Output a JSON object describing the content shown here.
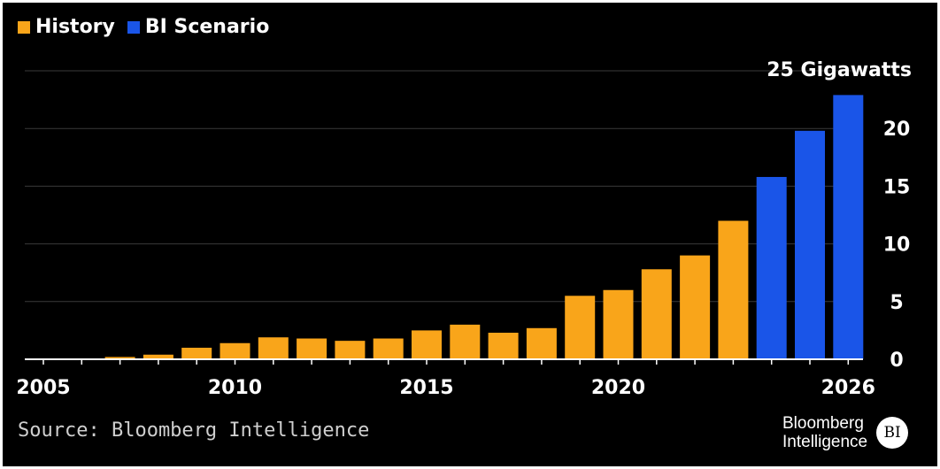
{
  "legend": [
    {
      "label": "History",
      "color": "#f9a51a"
    },
    {
      "label": "BI Scenario",
      "color": "#1a55e8"
    }
  ],
  "source": "Source: Bloomberg Intelligence",
  "logo": {
    "line1": "Bloomberg",
    "line2": "Intelligence",
    "badge": "BI"
  },
  "chart_data": {
    "type": "bar",
    "unit_label": "25 Gigawatts",
    "x": [
      2005,
      2006,
      2007,
      2008,
      2009,
      2010,
      2011,
      2012,
      2013,
      2014,
      2015,
      2016,
      2017,
      2018,
      2019,
      2020,
      2021,
      2022,
      2023,
      2024,
      2025,
      2026
    ],
    "series": [
      {
        "name": "History",
        "color": "#f9a51a",
        "x": [
          2005,
          2006,
          2007,
          2008,
          2009,
          2010,
          2011,
          2012,
          2013,
          2014,
          2015,
          2016,
          2017,
          2018,
          2019,
          2020,
          2021,
          2022,
          2023
        ],
        "values": [
          0,
          0.05,
          0.2,
          0.4,
          1.0,
          1.4,
          1.9,
          1.8,
          1.6,
          1.8,
          2.5,
          3.0,
          2.3,
          2.7,
          5.5,
          6.0,
          7.8,
          9.0,
          12.0
        ]
      },
      {
        "name": "BI Scenario",
        "color": "#1a55e8",
        "x": [
          2024,
          2025,
          2026
        ],
        "values": [
          15.8,
          19.8,
          22.9
        ]
      }
    ],
    "xticks": [
      "2005",
      "2010",
      "2015",
      "2020",
      "2026"
    ],
    "xtick_values": [
      2005,
      2010,
      2015,
      2020,
      2026
    ],
    "yticks": [
      "0",
      "5",
      "10",
      "15",
      "20"
    ],
    "ytick_values": [
      0,
      5,
      10,
      15,
      20
    ],
    "ylim": [
      0,
      25
    ],
    "grid": true,
    "legend_position": "top-left",
    "ytick_side": "right"
  }
}
